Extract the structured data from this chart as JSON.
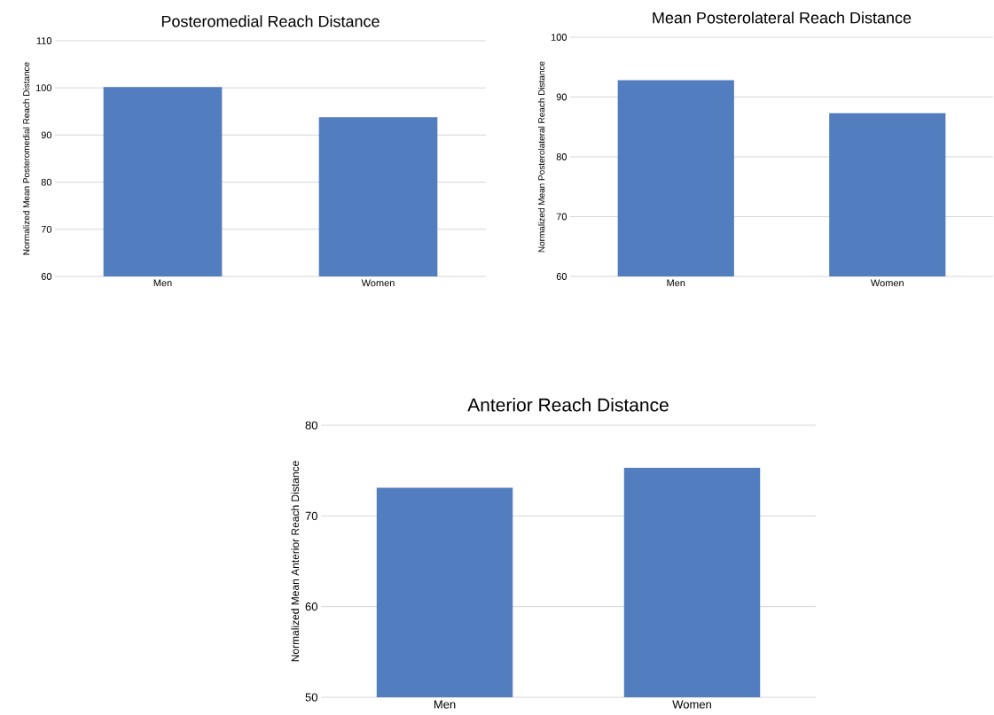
{
  "chart_data": [
    {
      "type": "bar",
      "title": "Posteromedial Reach Distance",
      "ylabel": "Normalized Mean Posteromedial Reach Distance",
      "categories": [
        "Men",
        "Women"
      ],
      "values": [
        100.2,
        93.8
      ],
      "color": "#527dbf",
      "ylim": [
        60,
        110
      ],
      "yticks": [
        60,
        70,
        80,
        90,
        100,
        110
      ],
      "grid": "y"
    },
    {
      "type": "bar",
      "title": "Mean Posterolateral Reach Distance",
      "ylabel": "Normalized Mean Posterolateral Reach Distance",
      "categories": [
        "Men",
        "Women"
      ],
      "values": [
        92.8,
        87.3
      ],
      "color": "#527dbf",
      "ylim": [
        60,
        100
      ],
      "yticks": [
        60,
        70,
        80,
        90,
        100
      ],
      "grid": "y"
    },
    {
      "type": "bar",
      "title": "Anterior Reach Distance",
      "ylabel": "Normalized Mean Anterior Reach Distance",
      "categories": [
        "Men",
        "Women"
      ],
      "values": [
        73.1,
        75.3
      ],
      "color": "#527dbf",
      "ylim": [
        50,
        80
      ],
      "yticks": [
        50,
        60,
        70,
        80
      ],
      "grid": "y"
    }
  ]
}
